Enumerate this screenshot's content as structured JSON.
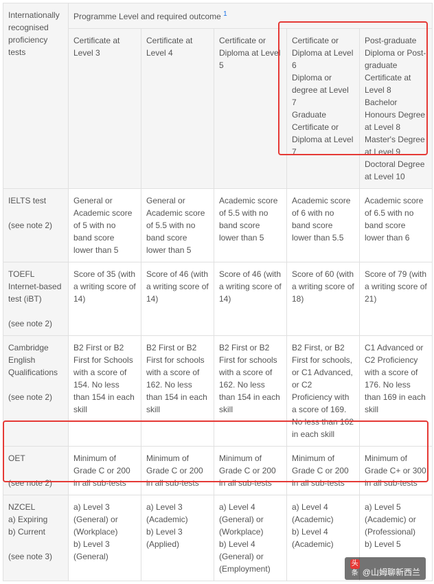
{
  "table": {
    "border_color": "#e0e0e0",
    "header_bg": "#f5f5f5",
    "font_size": 12,
    "text_color": "#555555",
    "footnote_color": "#1a73e8",
    "highlight_border": "#e53935",
    "row_label_header": "Internationally recognised proficiency tests",
    "prog_level_header": "Programme Level and required outcome",
    "prog_level_sup": "1",
    "col_headers": [
      "Certificate at Level 3",
      "Certificate at Level 4",
      "Certificate or Diploma at Level 5",
      "Certificate or Diploma at Level 6\nDiploma or degree at Level 7\nGraduate Certificate or Diploma at Level 7",
      "Post-graduate Diploma or Post-graduate Certificate at Level 8\nBachelor Honours Degree at Level 8\nMaster's Degree at Level 9\nDoctoral Degree at Level 10"
    ],
    "rows": [
      {
        "label": "IELTS test\n\n(see note 2)",
        "cells": [
          "General or Academic score of 5 with no band score lower than 5",
          "General or Academic score of 5.5 with no band score lower than 5",
          "Academic score of 5.5 with no band score lower than 5",
          "Academic score of 6 with no band score lower than 5.5",
          "Academic score of 6.5 with no band score lower than 6"
        ]
      },
      {
        "label": "TOEFL Internet-based test (iBT)\n\n(see note 2)",
        "cells": [
          "Score of 35 (with a writing score of 14)",
          "Score of 46 (with a writing score of 14)",
          "Score of 46 (with a writing score of 14)",
          "Score of 60 (with a writing score of 18)",
          "Score of 79 (with a writing score of 21)"
        ]
      },
      {
        "label": "Cambridge English Qualifications\n\n(see note 2)",
        "cells": [
          "B2 First or B2 First for Schools with a score of 154. No less than 154 in each skill",
          "B2 First or B2 First for schools with a score of 162. No less than 154 in each skill",
          "B2 First or B2 First for schools with a score of 162. No less than 154 in each skill",
          "B2 First, or B2 First for schools, or C1 Advanced, or C2 Proficiency with a score of 169. No less than 162 in each skill",
          "C1 Advanced or C2 Proficiency with a score of 176. No less than 169 in each skill"
        ]
      },
      {
        "label": "OET\n\n(see note 2)",
        "cells": [
          "Minimum of Grade C or 200 in all sub-tests",
          "Minimum of Grade C or 200 in all sub-tests",
          "Minimum of Grade C or 200 in all sub-tests",
          "Minimum of Grade C or 200 in all sub-tests",
          "Minimum of Grade C+ or 300 in all sub-tests"
        ]
      },
      {
        "label": "NZCEL\na) Expiring\nb) Current\n\n(see note 3)",
        "cells": [
          "a) Level 3 (General) or (Workplace)\nb) Level 3 (General)",
          "a) Level 3 (Academic)\nb) Level 3 (Applied)",
          "a) Level 4 (General) or (Workplace)\nb) Level 4 (General) or (Employment)",
          "a) Level 4 (Academic)\nb) Level 4 (Academic)",
          "a) Level 5 (Academic) or (Professional)\nb) Level 5"
        ]
      }
    ]
  },
  "watermark": {
    "text": "山姆聊新西兰",
    "prefix_icon": "头条",
    "at": "@"
  }
}
